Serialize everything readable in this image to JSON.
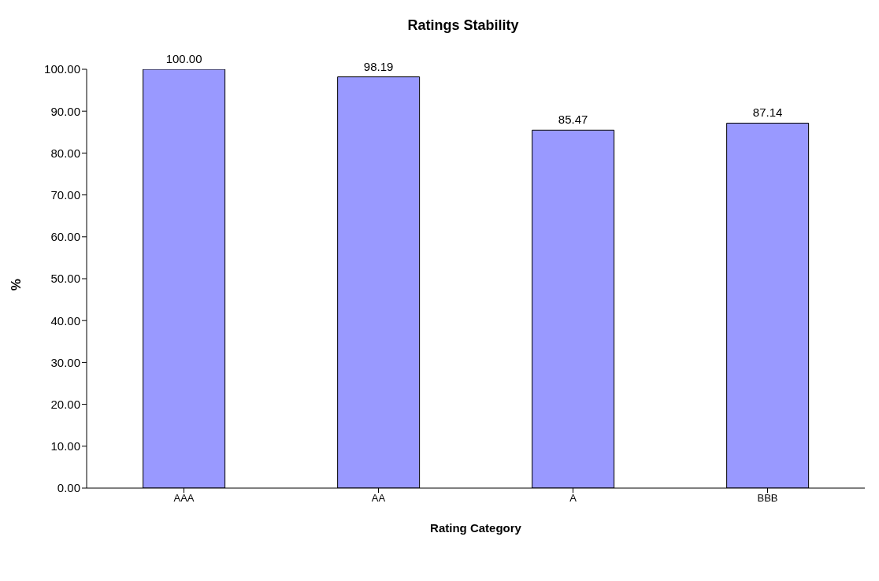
{
  "chart_data": {
    "type": "bar",
    "title": "Ratings Stability",
    "xlabel": "Rating Category",
    "ylabel": "%",
    "categories": [
      "AAA",
      "AA",
      "A",
      "BBB"
    ],
    "values": [
      100.0,
      98.19,
      85.47,
      87.14
    ],
    "value_labels": [
      "100.00",
      "98.19",
      "85.47",
      "87.14"
    ],
    "color": "#9999ff",
    "ylim": [
      0,
      100
    ],
    "yticks": [
      {
        "value": 0,
        "label": "0.00"
      },
      {
        "value": 10,
        "label": "10.00"
      },
      {
        "value": 20,
        "label": "20.00"
      },
      {
        "value": 30,
        "label": "30.00"
      },
      {
        "value": 40,
        "label": "40.00"
      },
      {
        "value": 50,
        "label": "50.00"
      },
      {
        "value": 60,
        "label": "60.00"
      },
      {
        "value": 70,
        "label": "70.00"
      },
      {
        "value": 80,
        "label": "80.00"
      },
      {
        "value": 90,
        "label": "90.00"
      },
      {
        "value": 100,
        "label": "100.00"
      }
    ]
  }
}
